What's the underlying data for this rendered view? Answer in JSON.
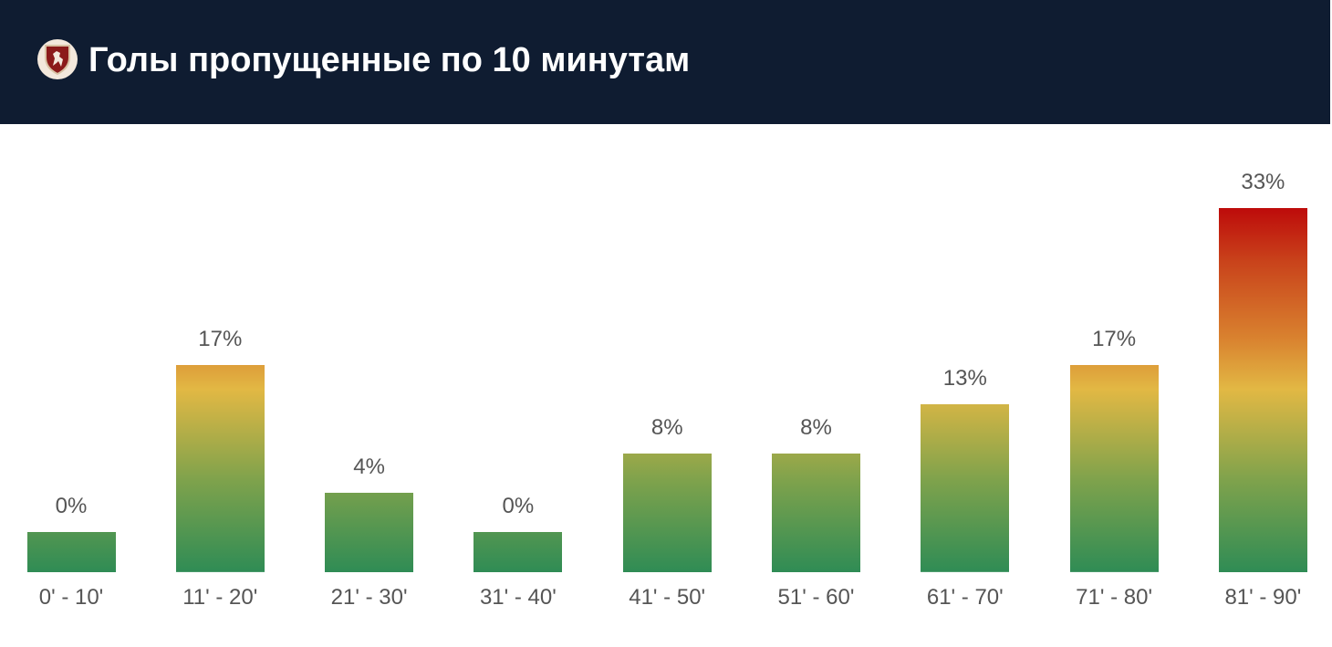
{
  "header": {
    "title": "Голы пропущенные по 10 минутам",
    "logo": "club-crest"
  },
  "colors": {
    "header_bg": "#0f1c31",
    "low": "#2f8c55",
    "mid": "#e2b844",
    "high": "#bd0a0a"
  },
  "chart_data": {
    "type": "bar",
    "title": "Голы пропущенные по 10 минутам",
    "categories": [
      "0' - 10'",
      "11' - 20'",
      "21' - 30'",
      "31' - 40'",
      "41' - 50'",
      "51' - 60'",
      "61' - 70'",
      "71' - 80'",
      "81' - 90'"
    ],
    "values": [
      0,
      17,
      4,
      0,
      8,
      8,
      13,
      17,
      33
    ],
    "value_labels": [
      "0%",
      "17%",
      "4%",
      "0%",
      "8%",
      "8%",
      "13%",
      "17%",
      "33%"
    ],
    "unit": "%",
    "xlabel": "",
    "ylabel": "",
    "ylim": [
      0,
      33
    ],
    "grid": false
  }
}
